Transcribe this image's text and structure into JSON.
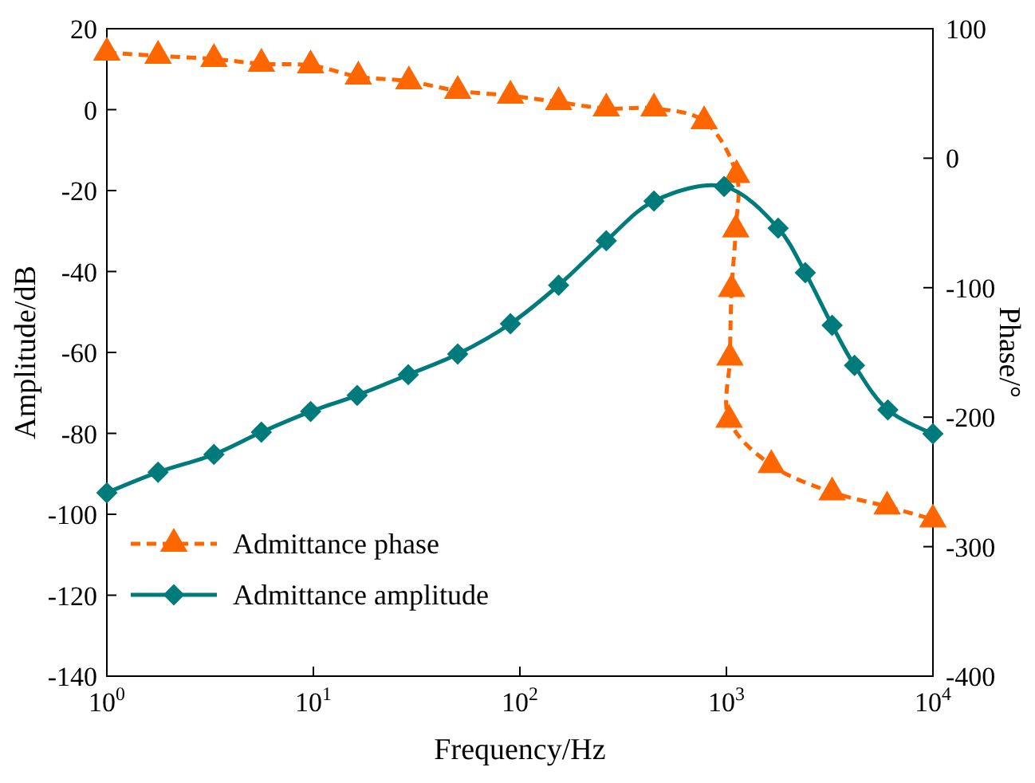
{
  "chart_data": {
    "type": "line",
    "xlabel": "Frequency/Hz",
    "ylabel": "Amplitude/dB",
    "y2label": "Phase/°",
    "log": "x",
    "grid": false,
    "legend": "bottom left",
    "line_style": "solid",
    "xlim": [
      1,
      10000
    ],
    "xticks": [
      {
        "value": 1,
        "label": "10$^{0}$"
      },
      {
        "value": 10,
        "label": "10$^{1}$"
      },
      {
        "value": 100,
        "label": "10$^{2}$"
      },
      {
        "value": 1000,
        "label": "10$^{3}$"
      },
      {
        "value": 10000,
        "label": "10$^{4}$"
      }
    ],
    "ylim": [
      -140,
      20
    ],
    "yticks": [
      -140,
      -120,
      -100,
      -80,
      -60,
      -40,
      -20,
      0,
      20
    ],
    "y2lim": [
      -400,
      100
    ],
    "y2ticks": [
      -400,
      -300,
      -200,
      -100,
      0,
      100
    ],
    "series": [
      {
        "name": "Admittance phase",
        "color": "#ff6600",
        "axis": "y2",
        "marker": "triangle",
        "line_style": "dashed",
        "x": [
          1,
          1.77,
          3.3,
          5.6,
          9.7,
          16.5,
          29,
          50,
          90,
          154,
          262,
          446,
          780,
          1120,
          1110,
          1060,
          1040,
          1030,
          1650,
          3250,
          6000,
          10000
        ],
        "values": [
          81.5,
          79,
          76.6,
          72.9,
          71.7,
          63,
          59.4,
          52,
          48.3,
          43.3,
          38.4,
          38.4,
          28.6,
          -13,
          -55,
          -101,
          -154,
          -202,
          -237,
          -258,
          -269,
          -279
        ]
      },
      {
        "name": "Admittance amplitude",
        "color": "#007b7b",
        "marker": "diamond",
        "x": [
          1,
          1.77,
          3.3,
          5.6,
          9.7,
          16.3,
          28.8,
          50,
          90,
          154,
          262,
          446,
          975,
          1780,
          2410,
          3250,
          4170,
          6050,
          10000
        ],
        "values": [
          -94.7,
          -89.6,
          -85.2,
          -79.7,
          -74.6,
          -70.6,
          -65.5,
          -60.4,
          -52.9,
          -43.4,
          -32.4,
          -22.6,
          -19,
          -29.3,
          -40.3,
          -53.3,
          -63.2,
          -74.2,
          -80.1
        ]
      }
    ]
  }
}
